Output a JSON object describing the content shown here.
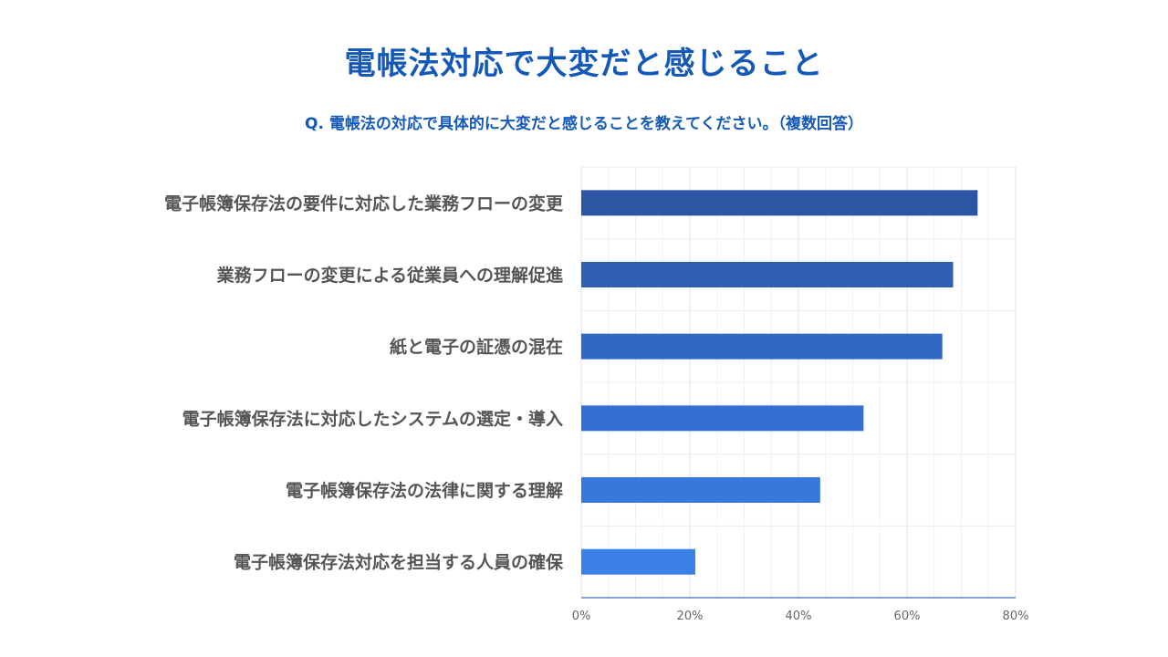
{
  "title": "電帳法対応で大変だと感じること",
  "subtitle": "Q. 電帳法の対応で具体的に大変だと感じることを教えてください。（複数回答）",
  "chart_data": {
    "type": "bar",
    "orientation": "horizontal",
    "categories": [
      "電子帳簿保存法の要件に対応した業務フローの変更",
      "業務フローの変更による従業員への理解促進",
      "紙と電子の証憑の混在",
      "電子帳簿保存法に対応したシステムの選定・導入",
      "電子帳簿保存法の法律に関する理解",
      "電子帳簿保存法対応を担当する人員の確保"
    ],
    "values": [
      73,
      68.5,
      66.5,
      52,
      44,
      21
    ],
    "xlim": [
      0,
      80
    ],
    "xticks": [
      "0%",
      "20%",
      "40%",
      "60%",
      "80%"
    ],
    "xtick_values": [
      0,
      20,
      40,
      60,
      80
    ],
    "colors": [
      "#2c56a3",
      "#2f5fb4",
      "#3267c4",
      "#3470d2",
      "#3778dc",
      "#3a80e6"
    ],
    "grid": true
  }
}
